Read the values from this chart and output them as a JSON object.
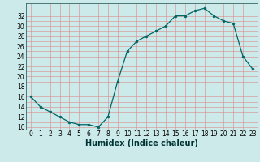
{
  "x": [
    0,
    1,
    2,
    3,
    4,
    5,
    6,
    7,
    8,
    9,
    10,
    11,
    12,
    13,
    14,
    15,
    16,
    17,
    18,
    19,
    20,
    21,
    22,
    23
  ],
  "y": [
    16,
    14,
    13,
    12,
    11,
    10.5,
    10.5,
    10,
    12,
    19,
    25,
    27,
    28,
    29,
    30,
    32,
    32,
    33,
    33.5,
    32,
    31,
    30.5,
    24,
    21.5
  ],
  "line_color": "#006666",
  "marker_color": "#006666",
  "bg_color": "#cceaea",
  "grid_color": "#dd8888",
  "xlabel": "Humidex (Indice chaleur)",
  "xlim": [
    -0.5,
    23.5
  ],
  "ylim": [
    9.5,
    34.5
  ],
  "yticks": [
    10,
    12,
    14,
    16,
    18,
    20,
    22,
    24,
    26,
    28,
    30,
    32
  ],
  "xtick_labels": [
    "0",
    "1",
    "2",
    "3",
    "4",
    "5",
    "6",
    "7",
    "8",
    "9",
    "10",
    "11",
    "12",
    "13",
    "14",
    "15",
    "16",
    "17",
    "18",
    "19",
    "20",
    "21",
    "22",
    "23"
  ],
  "font_size": 5.5,
  "xlabel_fontsize": 7.0,
  "marker_size": 2.0,
  "line_width": 0.9
}
